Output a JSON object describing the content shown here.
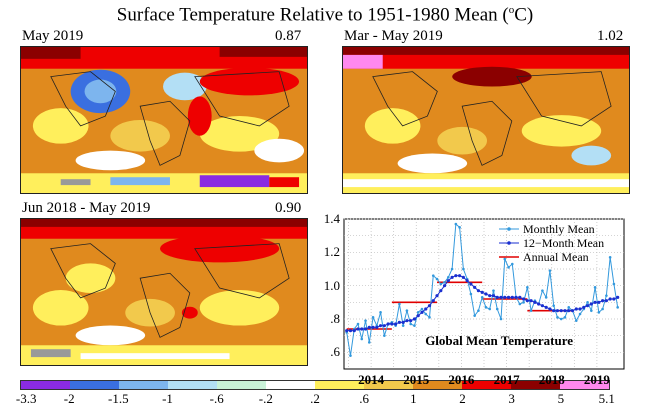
{
  "title": "Surface Temperature Relative to 1951-1980 Mean (",
  "title_unit": "o",
  "title_end": "C)",
  "maps": [
    {
      "period": "May 2019",
      "value": "0.87"
    },
    {
      "period": "Mar - May 2019",
      "value": "1.02"
    },
    {
      "period": "Jun 2018 - May 2019",
      "value": "0.90"
    }
  ],
  "legend": {
    "ticks": [
      "-3.3",
      "-2",
      "-1.5",
      "-1",
      "-.6",
      "-.2",
      ".2",
      ".6",
      "1",
      "2",
      "3",
      "5",
      "5.1"
    ],
    "colors": [
      "#8a2be2",
      "#3a6fe0",
      "#7db5ee",
      "#b3dff5",
      "#c9f2d8",
      "#ffffff",
      "#ffef5c",
      "#f2c94c",
      "#e08a1e",
      "#ee0000",
      "#8b0000",
      "#ff88ee"
    ]
  },
  "chart_data": {
    "type": "line",
    "title": "Global Mean Temperature",
    "xlabel": "",
    "ylabel": "",
    "xlim": [
      2013.4,
      2019.6
    ],
    "ylim": [
      0.5,
      1.4
    ],
    "yticks": [
      0.6,
      0.8,
      1.0,
      1.2,
      1.4
    ],
    "ytick_labels": [
      ".6",
      ".8",
      "1.0",
      "1.2",
      "1.4"
    ],
    "xticks": [
      2014,
      2015,
      2016,
      2017,
      2018,
      2019
    ],
    "xtick_labels": [
      "2014",
      "2015",
      "2016",
      "2017",
      "2018",
      "2019"
    ],
    "legend": [
      "Monthly Mean",
      "12−Month Mean",
      "Annual Mean"
    ],
    "series": [
      {
        "name": "Monthly Mean",
        "color": "#3399dd",
        "x_start": 2013.46,
        "x_step": 0.08333,
        "values": [
          0.72,
          0.58,
          0.74,
          0.77,
          0.68,
          0.79,
          0.66,
          0.81,
          0.76,
          0.84,
          0.7,
          0.77,
          0.78,
          0.76,
          0.89,
          0.76,
          0.85,
          0.77,
          0.76,
          0.84,
          0.86,
          0.83,
          0.81,
          1.06,
          1.04,
          1.01,
          1.02,
          1.05,
          1.1,
          1.37,
          1.35,
          1.1,
          1.04,
          0.95,
          0.82,
          0.85,
          0.93,
          0.87,
          0.86,
          0.97,
          0.86,
          0.8,
          1.16,
          1.11,
          1.13,
          0.93,
          0.89,
          0.9,
          0.99,
          0.85,
          0.91,
          0.89,
          0.97,
          0.93,
          1.09,
          0.88,
          0.81,
          0.8,
          0.81,
          0.87,
          0.85,
          0.79,
          0.83,
          0.86,
          0.9,
          0.85,
          0.99,
          0.84,
          0.86,
          0.94,
          1.17,
          1.01,
          0.87
        ]
      },
      {
        "name": "12-Month Mean",
        "color": "#1a2fd0",
        "x_start": 2013.46,
        "x_step": 0.08333,
        "values": [
          0.73,
          0.73,
          0.73,
          0.74,
          0.74,
          0.74,
          0.75,
          0.75,
          0.75,
          0.76,
          0.76,
          0.77,
          0.77,
          0.77,
          0.78,
          0.78,
          0.79,
          0.79,
          0.8,
          0.82,
          0.84,
          0.86,
          0.88,
          0.91,
          0.94,
          0.97,
          1.0,
          1.03,
          1.05,
          1.06,
          1.06,
          1.05,
          1.03,
          1.01,
          0.99,
          0.97,
          0.96,
          0.95,
          0.94,
          0.94,
          0.93,
          0.93,
          0.93,
          0.93,
          0.93,
          0.93,
          0.93,
          0.92,
          0.91,
          0.91,
          0.9,
          0.89,
          0.88,
          0.87,
          0.86,
          0.85,
          0.85,
          0.85,
          0.85,
          0.85,
          0.85,
          0.86,
          0.86,
          0.87,
          0.88,
          0.89,
          0.9,
          0.9,
          0.91,
          0.91,
          0.92,
          0.92,
          0.93
        ]
      },
      {
        "name": "Annual Mean",
        "color": "#e00000",
        "segments": [
          {
            "x0": 2013.46,
            "x1": 2014.46,
            "y": 0.74
          },
          {
            "x0": 2014.46,
            "x1": 2015.46,
            "y": 0.9
          },
          {
            "x0": 2015.46,
            "x1": 2016.46,
            "y": 1.02
          },
          {
            "x0": 2016.46,
            "x1": 2017.46,
            "y": 0.92
          },
          {
            "x0": 2017.46,
            "x1": 2018.46,
            "y": 0.85
          }
        ]
      }
    ]
  }
}
